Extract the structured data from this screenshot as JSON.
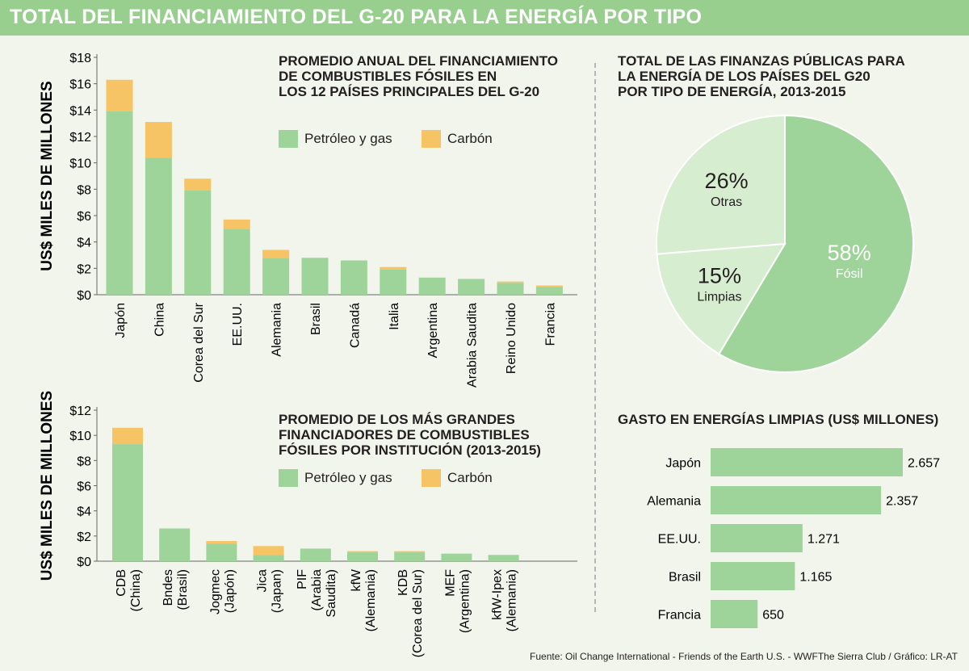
{
  "header": {
    "title": "TOTAL DEL FINANCIAMIENTO DEL G-20 PARA LA ENERGÍA POR TIPO"
  },
  "colors": {
    "header": "#98cf8f",
    "oil_gas": "#9ed49a",
    "coal": "#f6c465",
    "pie_fosil": "#9ed49a",
    "pie_light": "#d6edcf",
    "background": "#f1f5ec"
  },
  "legend": {
    "oil_gas": "Petróleo y gas",
    "coal": "Carbón"
  },
  "source": "Fuente: Oil Change International - Friends of the Earth U.S. - WWFThe Sierra Club / Gráfico: LR-AT",
  "chart_data": [
    {
      "type": "bar",
      "stacked": true,
      "title": "PROMEDIO ANUAL DEL FINANCIAMIENTO\nDE COMBUSTIBLES FÓSILES EN\nLOS 12 PAÍSES PRINCIPALES DEL G-20",
      "ylabel": "US$ MILES DE MILLONES",
      "ylim": [
        0,
        18
      ],
      "yticks": [
        "$0",
        "$2",
        "$4",
        "$6",
        "$8",
        "$10",
        "$12",
        "$14",
        "$16",
        "$18"
      ],
      "categories": [
        "Japón",
        "China",
        "Corea del Sur",
        "EE.UU.",
        "Alemania",
        "Brasil",
        "Canadá",
        "Italia",
        "Argentina",
        "Arabia Saudita",
        "Reino Unido",
        "Francia"
      ],
      "series": [
        {
          "name": "Petróleo y gas",
          "values": [
            13.9,
            10.4,
            7.9,
            5.0,
            2.8,
            2.8,
            2.6,
            1.9,
            1.3,
            1.2,
            0.9,
            0.6
          ]
        },
        {
          "name": "Carbón",
          "values": [
            2.4,
            2.7,
            0.9,
            0.7,
            0.6,
            0,
            0,
            0.2,
            0,
            0,
            0.1,
            0.1
          ]
        }
      ],
      "legend_position": "top"
    },
    {
      "type": "bar",
      "stacked": true,
      "title": "PROMEDIO DE LOS MÁS GRANDES\nFINANCIADORES DE COMBUSTIBLES\nFÓSILES POR INSTITUCIÓN (2013-2015)",
      "ylabel": "US$ MILES DE MILLONES",
      "ylim": [
        0,
        12
      ],
      "yticks": [
        "$0",
        "$2",
        "$4",
        "$6",
        "$8",
        "$10",
        "$12"
      ],
      "categories": [
        "CDB\n(China)",
        "Bndes\n(Brasil)",
        "Jogmec\n(Japón)",
        "Jica\n(Japan)",
        "PIF\n(Arabia\nSaudita)",
        "kfW\n(Alemania)",
        "KDB\n(Corea del Sur)",
        "MEF\n(Argentina)",
        "kfW-Ipex\n(Alemania)"
      ],
      "series": [
        {
          "name": "Petróleo y gas",
          "values": [
            9.3,
            2.6,
            1.4,
            0.5,
            1.0,
            0.7,
            0.7,
            0.6,
            0.5
          ]
        },
        {
          "name": "Carbón",
          "values": [
            1.3,
            0,
            0.2,
            0.7,
            0,
            0.1,
            0.1,
            0,
            0
          ]
        }
      ],
      "legend_position": "top"
    },
    {
      "type": "pie",
      "title": "TOTAL DE LAS FINANZAS PÚBLICAS PARA\nLA ENERGÍA DE LOS PAÍSES DEL G20\nPOR TIPO DE ENERGÍA, 2013-2015",
      "slices": [
        {
          "label": "Fósil",
          "value": 58,
          "pct_label": "58%"
        },
        {
          "label": "Limpias",
          "value": 15,
          "pct_label": "15%"
        },
        {
          "label": "Otras",
          "value": 26,
          "pct_label": "26%"
        }
      ]
    },
    {
      "type": "bar",
      "orientation": "horizontal",
      "title": "GASTO EN ENERGÍAS LIMPIAS (US$ MILLONES)",
      "categories": [
        "Japón",
        "Alemania",
        "EE.UU.",
        "Brasil",
        "Francia"
      ],
      "values": [
        2657,
        2357,
        1271,
        1165,
        650
      ],
      "value_labels": [
        "2.657",
        "2.357",
        "1.271",
        "1.165",
        "650"
      ]
    }
  ]
}
